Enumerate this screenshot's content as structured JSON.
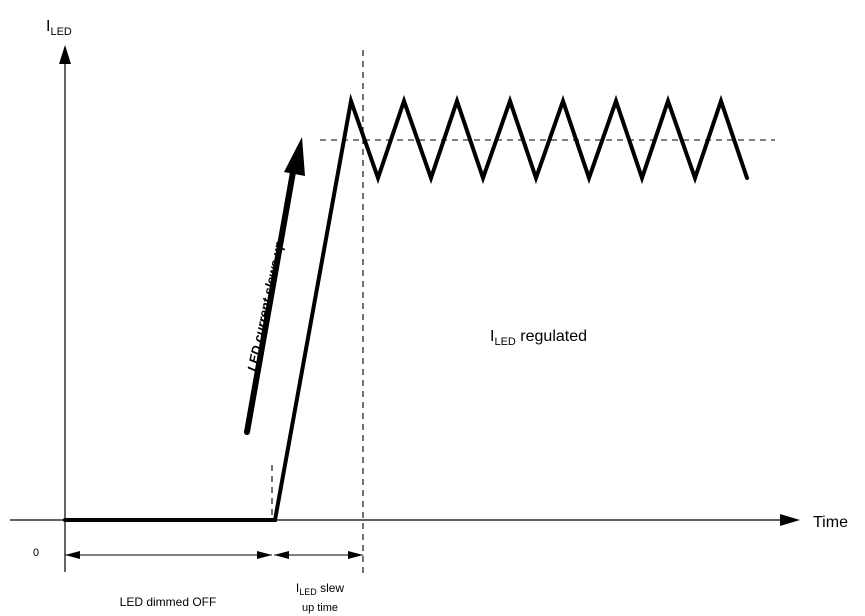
{
  "y_axis": {
    "main": "I",
    "sub": "LED"
  },
  "x_axis": {
    "label": "Time",
    "origin": "0"
  },
  "labels": {
    "slew_arrow": "LED current slews up",
    "regulated_main": "I",
    "regulated_sub": "LED",
    "regulated_rest": " regulated",
    "dimmed": "LED dimmed OFF",
    "slew_time_main": "I",
    "slew_time_sub": "LED",
    "slew_time_rest": " slew",
    "slew_time_line2": "up time"
  }
}
